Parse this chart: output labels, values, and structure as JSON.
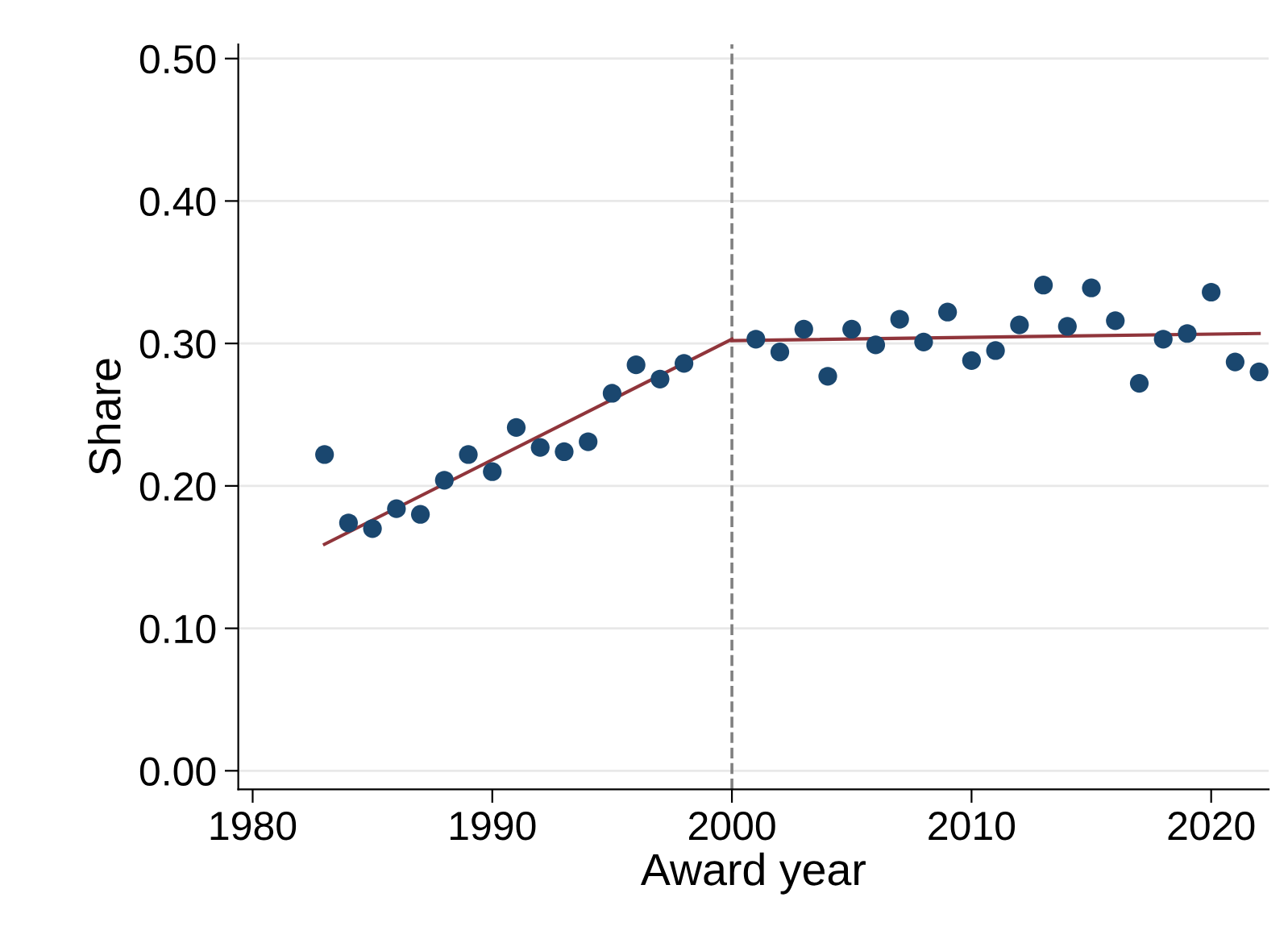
{
  "chart_data": {
    "type": "scatter",
    "xlabel": "Award year",
    "ylabel": "Share",
    "xlim": [
      1979.4,
      2022.4
    ],
    "ylim": [
      -0.013,
      0.51
    ],
    "xticks": [
      1980,
      1990,
      2000,
      2010,
      2020
    ],
    "yticks": [
      {
        "value": 0,
        "label": "0.00"
      },
      {
        "value": 0.1,
        "label": "0.10"
      },
      {
        "value": 0.2,
        "label": "0.20"
      },
      {
        "value": 0.3,
        "label": "0.30"
      },
      {
        "value": 0.4,
        "label": "0.40"
      },
      {
        "value": 0.5,
        "label": "0.50"
      }
    ],
    "grid": "y",
    "series": [
      {
        "marker": "circle",
        "color": "#1a476f",
        "x": [
          1983,
          1984,
          1985,
          1986,
          1987,
          1988,
          1989,
          1990,
          1991,
          1992,
          1993,
          1994,
          1995,
          1996,
          1997,
          1998,
          2001,
          2002,
          2003,
          2004,
          2005,
          2006,
          2007,
          2008,
          2009,
          2010,
          2011,
          2012,
          2013,
          2014,
          2015,
          2016,
          2017,
          2018,
          2019,
          2020,
          2021,
          2022
        ],
        "values": [
          0.222,
          0.174,
          0.17,
          0.184,
          0.18,
          0.204,
          0.222,
          0.21,
          0.241,
          0.227,
          0.224,
          0.231,
          0.265,
          0.285,
          0.275,
          0.286,
          0.303,
          0.294,
          0.31,
          0.277,
          0.31,
          0.299,
          0.317,
          0.301,
          0.322,
          0.288,
          0.295,
          0.313,
          0.341,
          0.312,
          0.339,
          0.316,
          0.272,
          0.303,
          0.307,
          0.336,
          0.287,
          0.28
        ]
      },
      {
        "type": "line",
        "color": "#90353b",
        "x": [
          1983,
          2000
        ],
        "values": [
          0.159,
          0.303
        ],
        "marker": "none"
      },
      {
        "type": "line",
        "color": "#90353b",
        "x": [
          2000,
          2022
        ],
        "values": [
          0.302,
          0.307
        ],
        "marker": "none"
      }
    ],
    "ref_lines": [
      {
        "axis": "x",
        "value": 2000,
        "color": "#808080",
        "line_style": "dashed"
      }
    ]
  }
}
